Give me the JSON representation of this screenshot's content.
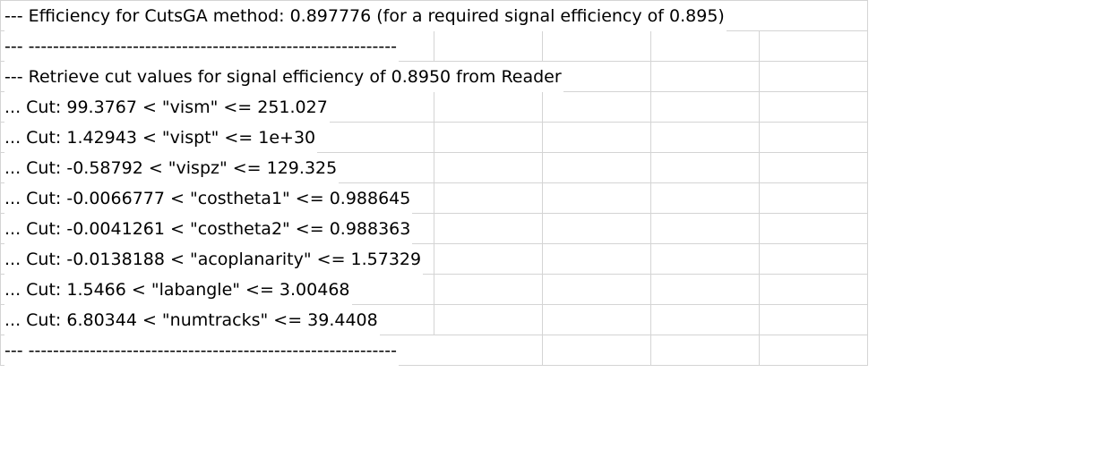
{
  "sheet": {
    "rows": [
      "--- Efficiency for CutsGA method: 0.897776 (for a required signal efficiency of 0.895)",
      "--- ------------------------------------------------------------",
      "--- Retrieve cut values for signal efficiency of 0.8950 from Reader",
      "... Cut: 99.3767 < \"vism\" <= 251.027",
      "... Cut: 1.42943 < \"vispt\" <= 1e+30",
      "... Cut: -0.58792 < \"vispz\" <= 129.325",
      "... Cut: -0.0066777 < \"costheta1\" <= 0.988645",
      "... Cut: -0.0041261 < \"costheta2\" <= 0.988363",
      "... Cut: -0.0138188 < \"acoplanarity\" <= 1.57329",
      "... Cut: 1.5466 < \"labangle\" <= 3.00468",
      "... Cut: 6.80344 < \"numtracks\" <= 39.4408",
      "--- ------------------------------------------------------------"
    ]
  }
}
